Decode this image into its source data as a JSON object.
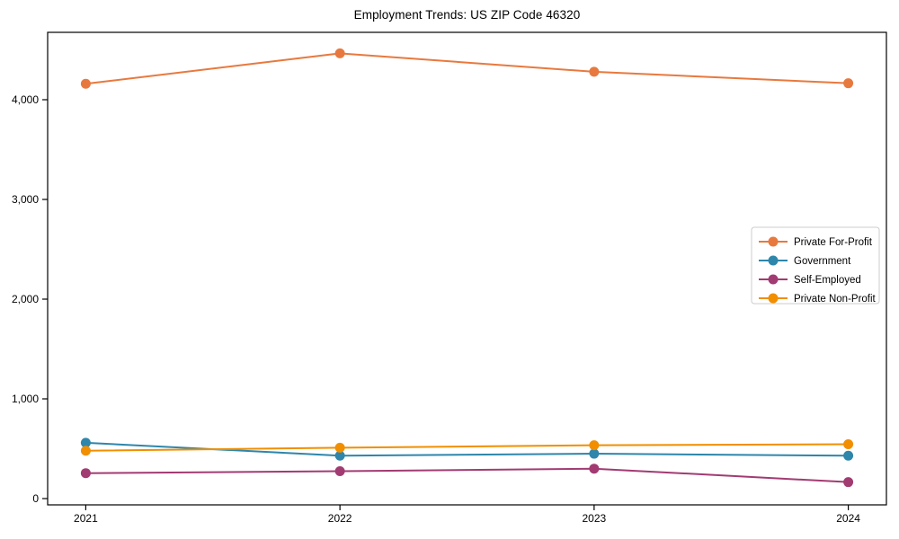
{
  "chart_data": {
    "type": "line",
    "title": "Employment Trends: US ZIP Code 46320",
    "xlabel": "",
    "ylabel": "",
    "categories": [
      "2021",
      "2022",
      "2023",
      "2024"
    ],
    "series": [
      {
        "name": "Private For-Profit",
        "color": "#e8793e",
        "values": [
          4160,
          4465,
          4280,
          4165
        ]
      },
      {
        "name": "Government",
        "color": "#2e86ab",
        "values": [
          560,
          430,
          450,
          430
        ]
      },
      {
        "name": "Self-Employed",
        "color": "#a23b72",
        "values": [
          255,
          275,
          300,
          165
        ]
      },
      {
        "name": "Private Non-Profit",
        "color": "#f18f01",
        "values": [
          480,
          510,
          535,
          545
        ]
      }
    ],
    "ylim": [
      0,
      4000
    ],
    "yticks": [
      {
        "value": 0,
        "label": "0"
      },
      {
        "value": 1000,
        "label": "1,000"
      },
      {
        "value": 2000,
        "label": "2,000"
      },
      {
        "value": 3000,
        "label": "3,000"
      },
      {
        "value": 4000,
        "label": "4,000"
      }
    ],
    "grid": false,
    "legend_position": "center right",
    "marker": "circle",
    "colors": {
      "axis": "#000000",
      "legend_border": "#cccccc",
      "legend_background": "#ffffff",
      "text": "#000000"
    }
  }
}
